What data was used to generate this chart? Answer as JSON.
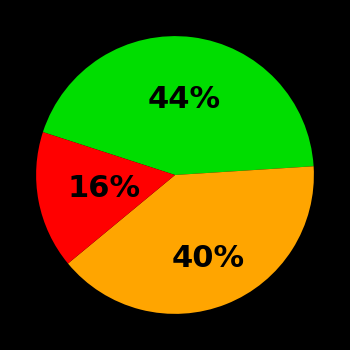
{
  "slices": [
    44,
    40,
    16
  ],
  "colors": [
    "#00dd00",
    "#ffa500",
    "#ff0000"
  ],
  "labels": [
    "44%",
    "40%",
    "16%"
  ],
  "label_radii": [
    0.55,
    0.65,
    0.52
  ],
  "background_color": "#000000",
  "startangle": 162,
  "counterclock": false,
  "figsize": [
    3.5,
    3.5
  ],
  "dpi": 100,
  "text_fontsize": 22,
  "text_fontweight": "bold"
}
